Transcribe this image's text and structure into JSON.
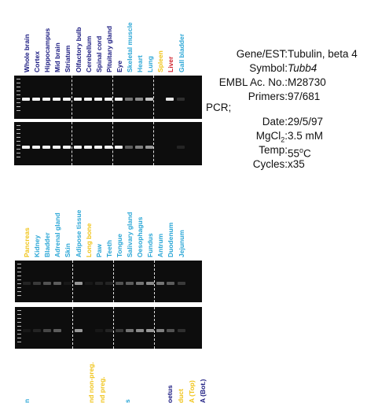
{
  "top_panel": {
    "labels": [
      {
        "text": "Whole brain",
        "color": "#1a1a80"
      },
      {
        "text": "Cortex",
        "color": "#1a1a80"
      },
      {
        "text": "Hippocampus",
        "color": "#1a1a80"
      },
      {
        "text": "Mid brain",
        "color": "#1a1a80"
      },
      {
        "text": "Striatum",
        "color": "#1a1a80"
      },
      {
        "text": "Olfactory bulb",
        "color": "#1a1a80"
      },
      {
        "text": "Cerebellum",
        "color": "#1a1a80"
      },
      {
        "text": "Spinal cord",
        "color": "#1a1a80"
      },
      {
        "text": "Pituitary gland",
        "color": "#1a1a80"
      },
      {
        "text": "Eye",
        "color": "#1a1a80"
      },
      {
        "text": "Skeletal muscle",
        "color": "#2aa6d6"
      },
      {
        "text": "Heart",
        "color": "#2aa6d6"
      },
      {
        "text": "Lung",
        "color": "#2aa6d6"
      },
      {
        "text": "Spleen",
        "color": "#f0c419"
      },
      {
        "text": "Liver",
        "color": "#d0202a"
      },
      {
        "text": "Gall bladder",
        "color": "#2aa6d6"
      }
    ],
    "gel1_intensity": [
      1,
      1,
      1,
      1,
      1,
      1,
      1,
      1,
      1,
      1,
      0.45,
      0.55,
      0.8,
      0,
      0.95,
      0.15
    ],
    "gel2_intensity": [
      1,
      1,
      1,
      1,
      1,
      1,
      1,
      1,
      1,
      1,
      0.35,
      0.5,
      0.6,
      0,
      0,
      0.1
    ]
  },
  "info": {
    "gene_label": "Gene/EST:",
    "gene_value": "Tubulin, beta 4",
    "symbol_label": "Symbol:",
    "symbol_value": "Tubb4",
    "embl_label": "EMBL Ac. No.:",
    "embl_value": "M28730",
    "primers_label": "Primers:",
    "primers_value": "97/681",
    "pcr_label": "PCR;",
    "date_label": "Date:",
    "date_value": "29/5/97",
    "mgcl_label_main": "MgCl",
    "mgcl_label_sub": "2",
    "mgcl_label_colon": ":",
    "mgcl_value": "3.5 mM",
    "temp_label": "Temp:",
    "temp_value_num": "55",
    "temp_value_sup": "o",
    "temp_value_unit": "C",
    "cycles_label": "Cycles:",
    "cycles_value": "x35"
  },
  "bottom_panel": {
    "labels": [
      {
        "text": "Pancreas",
        "color": "#f0c419"
      },
      {
        "text": "Kidney",
        "color": "#2aa6d6"
      },
      {
        "text": "Bladder",
        "color": "#2aa6d6"
      },
      {
        "text": "Adrenal gland",
        "color": "#2aa6d6"
      },
      {
        "text": "Skin",
        "color": "#2aa6d6"
      },
      {
        "text": "Adipose tissue",
        "color": "#2aa6d6"
      },
      {
        "text": "Long bone",
        "color": "#f0c419"
      },
      {
        "text": "Paw",
        "color": "#2aa6d6"
      },
      {
        "text": "Teeth",
        "color": "#2aa6d6"
      },
      {
        "text": "Tongue",
        "color": "#2aa6d6"
      },
      {
        "text": "Salivary gland",
        "color": "#2aa6d6"
      },
      {
        "text": "Oesophagus",
        "color": "#2aa6d6"
      },
      {
        "text": "Fundus",
        "color": "#2aa6d6"
      },
      {
        "text": "Antrum",
        "color": "#2aa6d6"
      },
      {
        "text": "Duodenum",
        "color": "#2aa6d6"
      },
      {
        "text": "Jejunum",
        "color": "#2aa6d6"
      }
    ],
    "gel3_intensity": [
      0.1,
      0.2,
      0.3,
      0.35,
      0.05,
      0.6,
      0.05,
      0.1,
      0.1,
      0.3,
      0.35,
      0.45,
      0.55,
      0.45,
      0.35,
      0.2
    ],
    "gel4_intensity": [
      0.05,
      0.1,
      0.25,
      0.35,
      0,
      0.6,
      0,
      0.05,
      0.1,
      0.2,
      0.45,
      0.55,
      0.6,
      0.5,
      0.3,
      0.15
    ]
  },
  "cut_labels": [
    {
      "text": "n",
      "color": "#2aa6d6"
    },
    {
      "text": "nd non-preg.",
      "color": "#f0c419"
    },
    {
      "text": "nd preg.",
      "color": "#f0c419"
    },
    {
      "text": "s",
      "color": "#2aa6d6"
    },
    {
      "text": "oetus",
      "color": "#1a1a80"
    },
    {
      "text": "duct",
      "color": "#f0c419"
    },
    {
      "text": "A (Top)",
      "color": "#f0c419"
    },
    {
      "text": "A (Bot.)",
      "color": "#1a1a80"
    }
  ]
}
